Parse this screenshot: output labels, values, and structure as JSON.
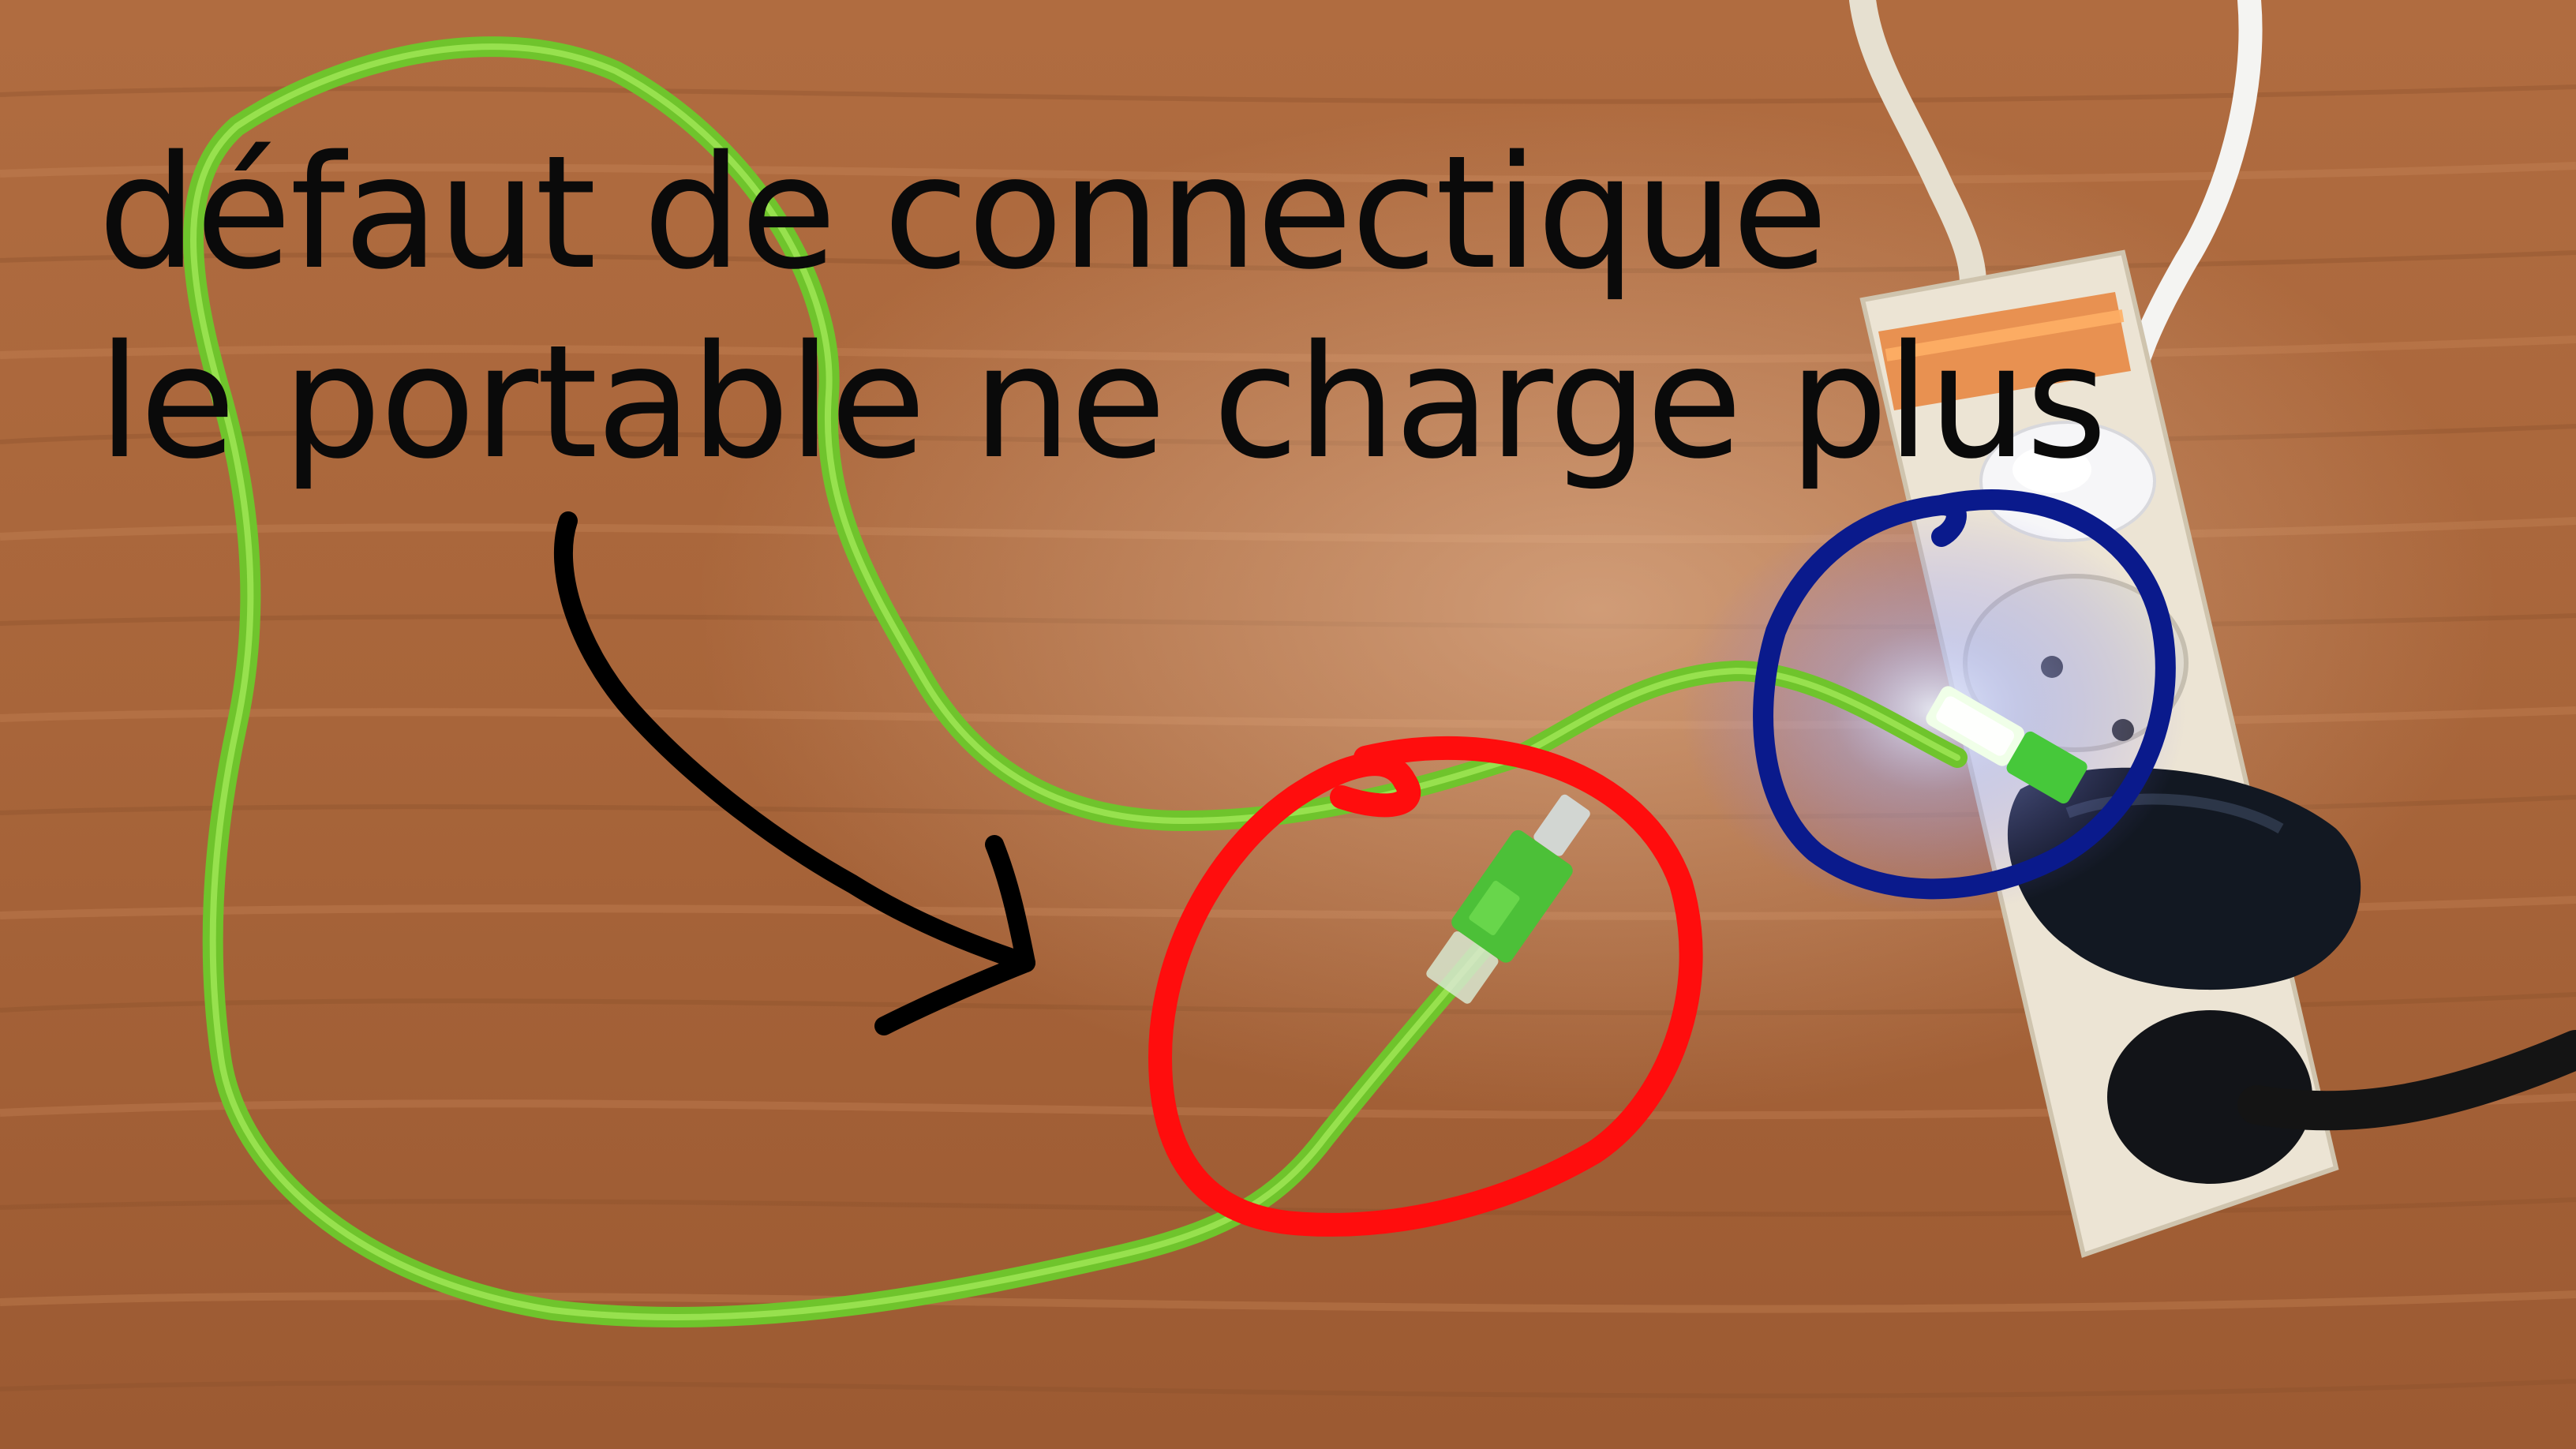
{
  "annotation": {
    "line1": "défaut de connectique",
    "line2": "le portable ne charge plus"
  },
  "colors": {
    "wood_base": "#a8663a",
    "wood_light": "#c8875a",
    "wood_dark": "#8a4f2b",
    "cable_green": "#7ed632",
    "red_circle": "#ff0d0d",
    "blue_circle": "#0a1a8c",
    "arrow": "#000000",
    "power_strip": "#ece4d4",
    "text": "#0a0a0a"
  },
  "icons": {
    "arrow": "curved-arrow-icon",
    "plug": "charger-plug-icon"
  }
}
